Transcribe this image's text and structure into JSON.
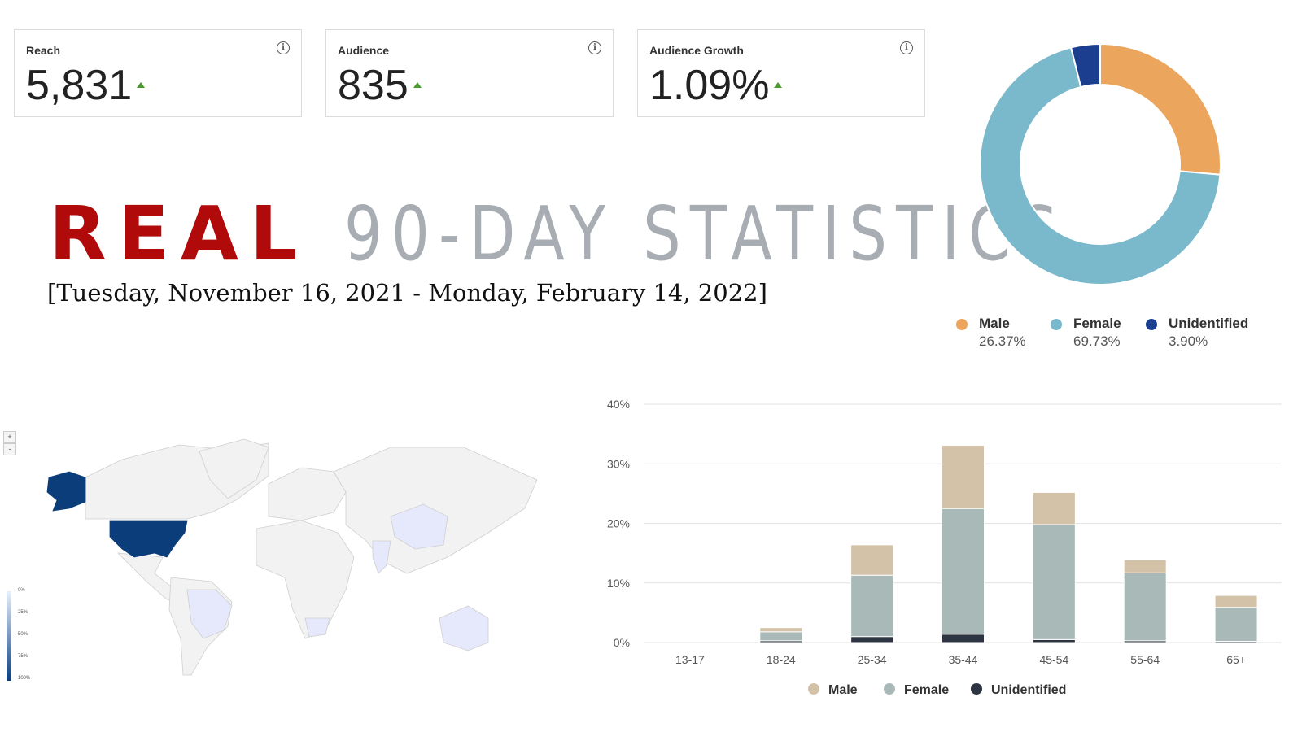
{
  "kpis": [
    {
      "label": "Reach",
      "value": "5,831",
      "trend": "up"
    },
    {
      "label": "Audience",
      "value": "835",
      "trend": "up"
    },
    {
      "label": "Audience Growth",
      "value": "1.09%",
      "trend": "up"
    }
  ],
  "headline": {
    "accent": "REAL",
    "rest": "90-DAY STATISTICS"
  },
  "date_range": "[Tuesday, November 16, 2021 - Monday, February 14, 2022]",
  "map": {
    "zoom_in": "+",
    "zoom_out": "-",
    "scale_labels": [
      "0%",
      "25%",
      "50%",
      "75%",
      "100%"
    ],
    "highlight_color": "#0b3d7a"
  },
  "chart_data": [
    {
      "type": "pie",
      "variant": "donut",
      "slices": [
        {
          "name": "Male",
          "value": 26.37,
          "label": "26.37%",
          "color": "#eca55d"
        },
        {
          "name": "Female",
          "value": 69.73,
          "label": "69.73%",
          "color": "#7ab8cb"
        },
        {
          "name": "Unidentified",
          "value": 3.9,
          "label": "3.90%",
          "color": "#1b3f8e"
        }
      ],
      "legend": "bottom"
    },
    {
      "type": "bar",
      "stacked": true,
      "categories": [
        "13-17",
        "18-24",
        "25-34",
        "35-44",
        "45-54",
        "55-64",
        "65+"
      ],
      "series": [
        {
          "name": "Unidentified",
          "color": "#2c3541",
          "values": [
            0,
            0.3,
            1.0,
            1.4,
            0.5,
            0.3,
            0.2
          ]
        },
        {
          "name": "Female",
          "color": "#a9b9b7",
          "values": [
            0,
            1.5,
            10.3,
            21.1,
            19.3,
            11.4,
            5.7
          ]
        },
        {
          "name": "Male",
          "color": "#d3c2a7",
          "values": [
            0,
            0.7,
            5.1,
            10.6,
            5.4,
            2.2,
            2.0
          ]
        }
      ],
      "legend_order": [
        "Male",
        "Female",
        "Unidentified"
      ],
      "yticks": [
        "0%",
        "10%",
        "20%",
        "30%",
        "40%"
      ],
      "ylim": [
        0,
        40
      ],
      "grid": true,
      "legend": "bottom"
    }
  ]
}
